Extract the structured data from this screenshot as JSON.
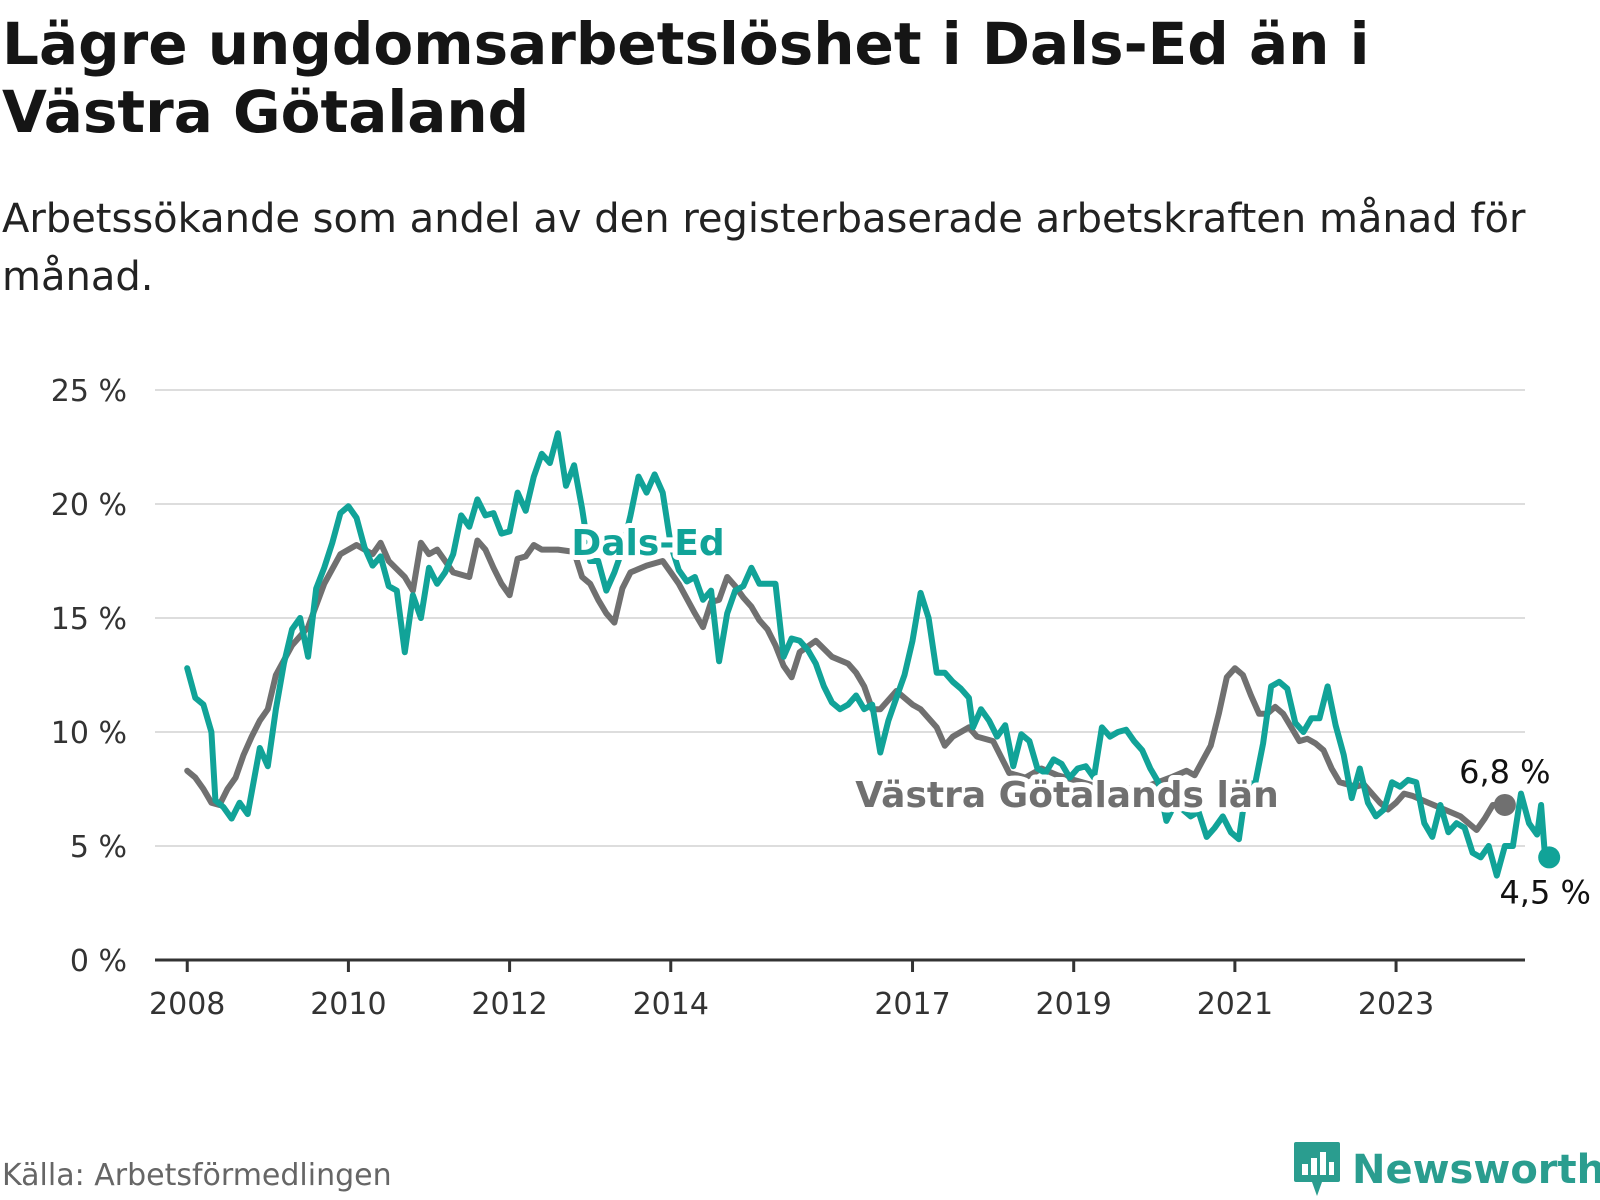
{
  "title": "Lägre ungdomsarbetslöshet i Dals-Ed än i Västra Götaland",
  "subtitle": "Arbetssökande som andel av den registerbaserade arbetskraften månad för månad.",
  "source": "Källa: Arbetsförmedlingen",
  "brand": "Newsworthy",
  "colors": {
    "dals_ed": "#11a398",
    "vastra_gotaland": "#707070",
    "grid": "#dddddd",
    "axis": "#333333",
    "brand": "#2a9d8f"
  },
  "chart_data": {
    "type": "line",
    "title": "Lägre ungdomsarbetslöshet i Dals-Ed än i Västra Götaland",
    "xlabel": "",
    "ylabel": "",
    "xlim": [
      2007.6,
      2024.6
    ],
    "ylim": [
      0,
      25
    ],
    "y_ticks": [
      0,
      5,
      10,
      15,
      20,
      25
    ],
    "y_tick_labels": [
      "0 %",
      "5 %",
      "10 %",
      "15 %",
      "20 %",
      "25 %"
    ],
    "x_ticks": [
      2008,
      2010,
      2012,
      2014,
      2017,
      2019,
      2021,
      2023
    ],
    "x_tick_labels": [
      "2008",
      "2010",
      "2012",
      "2014",
      "2017",
      "2019",
      "2021",
      "2023"
    ],
    "grid": true,
    "series": [
      {
        "name": "Västra Götalands län",
        "label": "Västra Götalands län",
        "end_label": "6,8 %",
        "end_value": 6.8,
        "color": "#707070",
        "points": [
          [
            2008.0,
            8.3
          ],
          [
            2008.1,
            8.0
          ],
          [
            2008.2,
            7.5
          ],
          [
            2008.3,
            6.9
          ],
          [
            2008.4,
            6.8
          ],
          [
            2008.5,
            7.5
          ],
          [
            2008.6,
            8.0
          ],
          [
            2008.7,
            9.0
          ],
          [
            2008.8,
            9.8
          ],
          [
            2008.9,
            10.5
          ],
          [
            2009.0,
            11.0
          ],
          [
            2009.1,
            12.5
          ],
          [
            2009.3,
            13.8
          ],
          [
            2009.5,
            14.6
          ],
          [
            2009.7,
            16.5
          ],
          [
            2009.9,
            17.8
          ],
          [
            2010.1,
            18.2
          ],
          [
            2010.3,
            17.8
          ],
          [
            2010.4,
            18.3
          ],
          [
            2010.5,
            17.5
          ],
          [
            2010.7,
            16.8
          ],
          [
            2010.8,
            16.2
          ],
          [
            2010.9,
            18.3
          ],
          [
            2011.0,
            17.8
          ],
          [
            2011.1,
            18.0
          ],
          [
            2011.3,
            17.0
          ],
          [
            2011.5,
            16.8
          ],
          [
            2011.6,
            18.4
          ],
          [
            2011.7,
            18.0
          ],
          [
            2011.8,
            17.2
          ],
          [
            2011.9,
            16.5
          ],
          [
            2012.0,
            16.0
          ],
          [
            2012.1,
            17.6
          ],
          [
            2012.2,
            17.7
          ],
          [
            2012.3,
            18.2
          ],
          [
            2012.4,
            18.0
          ],
          [
            2012.6,
            18.0
          ],
          [
            2012.8,
            17.9
          ],
          [
            2012.9,
            16.8
          ],
          [
            2013.0,
            16.5
          ],
          [
            2013.1,
            15.8
          ],
          [
            2013.2,
            15.2
          ],
          [
            2013.3,
            14.8
          ],
          [
            2013.4,
            16.3
          ],
          [
            2013.5,
            17.0
          ],
          [
            2013.7,
            17.3
          ],
          [
            2013.9,
            17.5
          ],
          [
            2014.0,
            17.0
          ],
          [
            2014.1,
            16.5
          ],
          [
            2014.3,
            15.2
          ],
          [
            2014.4,
            14.6
          ],
          [
            2014.5,
            15.7
          ],
          [
            2014.6,
            15.8
          ],
          [
            2014.7,
            16.8
          ],
          [
            2014.8,
            16.4
          ],
          [
            2014.9,
            15.9
          ],
          [
            2015.0,
            15.5
          ],
          [
            2015.1,
            14.9
          ],
          [
            2015.2,
            14.5
          ],
          [
            2015.3,
            13.8
          ],
          [
            2015.4,
            12.9
          ],
          [
            2015.5,
            12.4
          ],
          [
            2015.6,
            13.5
          ],
          [
            2015.8,
            14.0
          ],
          [
            2016.0,
            13.3
          ],
          [
            2016.2,
            13.0
          ],
          [
            2016.3,
            12.6
          ],
          [
            2016.4,
            12.0
          ],
          [
            2016.5,
            11.0
          ],
          [
            2016.6,
            11.0
          ],
          [
            2016.8,
            11.8
          ],
          [
            2017.0,
            11.2
          ],
          [
            2017.1,
            11.0
          ],
          [
            2017.3,
            10.2
          ],
          [
            2017.4,
            9.4
          ],
          [
            2017.5,
            9.8
          ],
          [
            2017.7,
            10.2
          ],
          [
            2017.8,
            9.8
          ],
          [
            2018.0,
            9.6
          ],
          [
            2018.2,
            8.2
          ],
          [
            2018.4,
            8.0
          ],
          [
            2018.6,
            8.4
          ],
          [
            2018.8,
            8.1
          ],
          [
            2019.0,
            7.9
          ],
          [
            2019.3,
            7.6
          ],
          [
            2019.6,
            7.5
          ],
          [
            2019.9,
            7.6
          ],
          [
            2020.2,
            8.0
          ],
          [
            2020.4,
            8.3
          ],
          [
            2020.5,
            8.1
          ],
          [
            2020.7,
            9.4
          ],
          [
            2020.8,
            10.8
          ],
          [
            2020.9,
            12.4
          ],
          [
            2021.0,
            12.8
          ],
          [
            2021.1,
            12.5
          ],
          [
            2021.2,
            11.6
          ],
          [
            2021.3,
            10.8
          ],
          [
            2021.4,
            10.8
          ],
          [
            2021.5,
            11.1
          ],
          [
            2021.6,
            10.8
          ],
          [
            2021.7,
            10.2
          ],
          [
            2021.8,
            9.6
          ],
          [
            2021.9,
            9.7
          ],
          [
            2022.0,
            9.5
          ],
          [
            2022.1,
            9.2
          ],
          [
            2022.2,
            8.4
          ],
          [
            2022.3,
            7.8
          ],
          [
            2022.5,
            7.6
          ],
          [
            2022.6,
            7.7
          ],
          [
            2022.7,
            7.3
          ],
          [
            2022.8,
            6.9
          ],
          [
            2022.9,
            6.6
          ],
          [
            2023.0,
            6.9
          ],
          [
            2023.1,
            7.3
          ],
          [
            2023.2,
            7.2
          ],
          [
            2023.4,
            6.9
          ],
          [
            2023.6,
            6.6
          ],
          [
            2023.8,
            6.3
          ],
          [
            2024.0,
            5.7
          ],
          [
            2024.1,
            6.2
          ],
          [
            2024.2,
            6.8
          ],
          [
            2024.35,
            6.8
          ]
        ]
      },
      {
        "name": "Dals-Ed",
        "label": "Dals-Ed",
        "end_label": "4,5 %",
        "end_value": 4.5,
        "color": "#11a398",
        "points": [
          [
            2008.0,
            12.8
          ],
          [
            2008.1,
            11.5
          ],
          [
            2008.2,
            11.2
          ],
          [
            2008.3,
            10.0
          ],
          [
            2008.35,
            7.0
          ],
          [
            2008.45,
            6.7
          ],
          [
            2008.55,
            6.2
          ],
          [
            2008.65,
            6.9
          ],
          [
            2008.75,
            6.4
          ],
          [
            2008.9,
            9.3
          ],
          [
            2009.0,
            8.5
          ],
          [
            2009.1,
            11.0
          ],
          [
            2009.2,
            13.0
          ],
          [
            2009.3,
            14.5
          ],
          [
            2009.4,
            15.0
          ],
          [
            2009.5,
            13.3
          ],
          [
            2009.6,
            16.3
          ],
          [
            2009.7,
            17.2
          ],
          [
            2009.8,
            18.3
          ],
          [
            2009.9,
            19.6
          ],
          [
            2010.0,
            19.9
          ],
          [
            2010.1,
            19.4
          ],
          [
            2010.2,
            18.1
          ],
          [
            2010.3,
            17.3
          ],
          [
            2010.4,
            17.7
          ],
          [
            2010.5,
            16.4
          ],
          [
            2010.6,
            16.2
          ],
          [
            2010.7,
            13.5
          ],
          [
            2010.8,
            16.0
          ],
          [
            2010.9,
            15.0
          ],
          [
            2011.0,
            17.2
          ],
          [
            2011.1,
            16.5
          ],
          [
            2011.2,
            17.0
          ],
          [
            2011.3,
            17.8
          ],
          [
            2011.4,
            19.5
          ],
          [
            2011.5,
            19.0
          ],
          [
            2011.6,
            20.2
          ],
          [
            2011.7,
            19.5
          ],
          [
            2011.8,
            19.6
          ],
          [
            2011.9,
            18.7
          ],
          [
            2012.0,
            18.8
          ],
          [
            2012.1,
            20.5
          ],
          [
            2012.2,
            19.7
          ],
          [
            2012.3,
            21.2
          ],
          [
            2012.4,
            22.2
          ],
          [
            2012.5,
            21.8
          ],
          [
            2012.6,
            23.1
          ],
          [
            2012.7,
            20.8
          ],
          [
            2012.8,
            21.7
          ],
          [
            2012.9,
            19.8
          ],
          [
            2013.0,
            17.5
          ],
          [
            2013.1,
            17.5
          ],
          [
            2013.2,
            16.2
          ],
          [
            2013.3,
            17.0
          ],
          [
            2013.4,
            18.0
          ],
          [
            2013.5,
            19.5
          ],
          [
            2013.6,
            21.2
          ],
          [
            2013.7,
            20.5
          ],
          [
            2013.8,
            21.3
          ],
          [
            2013.9,
            20.5
          ],
          [
            2014.0,
            18.2
          ],
          [
            2014.1,
            17.1
          ],
          [
            2014.2,
            16.6
          ],
          [
            2014.3,
            16.8
          ],
          [
            2014.4,
            15.8
          ],
          [
            2014.5,
            16.2
          ],
          [
            2014.6,
            13.1
          ],
          [
            2014.7,
            15.2
          ],
          [
            2014.8,
            16.2
          ],
          [
            2014.9,
            16.4
          ],
          [
            2015.0,
            17.2
          ],
          [
            2015.1,
            16.5
          ],
          [
            2015.2,
            16.5
          ],
          [
            2015.3,
            16.5
          ],
          [
            2015.4,
            13.3
          ],
          [
            2015.5,
            14.1
          ],
          [
            2015.6,
            14.0
          ],
          [
            2015.7,
            13.6
          ],
          [
            2015.8,
            13.0
          ],
          [
            2015.9,
            12.0
          ],
          [
            2016.0,
            11.3
          ],
          [
            2016.1,
            11.0
          ],
          [
            2016.2,
            11.2
          ],
          [
            2016.3,
            11.6
          ],
          [
            2016.4,
            11.0
          ],
          [
            2016.5,
            11.2
          ],
          [
            2016.6,
            9.1
          ],
          [
            2016.7,
            10.5
          ],
          [
            2016.8,
            11.5
          ],
          [
            2016.9,
            12.5
          ],
          [
            2017.0,
            14.0
          ],
          [
            2017.1,
            16.1
          ],
          [
            2017.2,
            15.0
          ],
          [
            2017.3,
            12.6
          ],
          [
            2017.4,
            12.6
          ],
          [
            2017.5,
            12.2
          ],
          [
            2017.6,
            11.9
          ],
          [
            2017.7,
            11.5
          ],
          [
            2017.75,
            10.2
          ],
          [
            2017.85,
            11.0
          ],
          [
            2017.95,
            10.5
          ],
          [
            2018.05,
            9.8
          ],
          [
            2018.15,
            10.3
          ],
          [
            2018.25,
            8.5
          ],
          [
            2018.35,
            9.9
          ],
          [
            2018.45,
            9.6
          ],
          [
            2018.55,
            8.4
          ],
          [
            2018.65,
            8.2
          ],
          [
            2018.75,
            8.8
          ],
          [
            2018.85,
            8.6
          ],
          [
            2018.95,
            8.0
          ],
          [
            2019.05,
            8.4
          ],
          [
            2019.15,
            8.5
          ],
          [
            2019.25,
            8.0
          ],
          [
            2019.35,
            10.2
          ],
          [
            2019.45,
            9.8
          ],
          [
            2019.55,
            10.0
          ],
          [
            2019.65,
            10.1
          ],
          [
            2019.75,
            9.6
          ],
          [
            2019.85,
            9.2
          ],
          [
            2019.95,
            8.4
          ],
          [
            2020.05,
            7.8
          ],
          [
            2020.15,
            6.1
          ],
          [
            2020.25,
            6.8
          ],
          [
            2020.35,
            6.6
          ],
          [
            2020.45,
            6.3
          ],
          [
            2020.55,
            6.5
          ],
          [
            2020.65,
            5.4
          ],
          [
            2020.75,
            5.8
          ],
          [
            2020.85,
            6.3
          ],
          [
            2020.95,
            5.6
          ],
          [
            2021.05,
            5.3
          ],
          [
            2021.15,
            7.8
          ],
          [
            2021.25,
            7.7
          ],
          [
            2021.35,
            9.5
          ],
          [
            2021.45,
            12.0
          ],
          [
            2021.55,
            12.2
          ],
          [
            2021.65,
            11.9
          ],
          [
            2021.75,
            10.4
          ],
          [
            2021.85,
            10.0
          ],
          [
            2021.95,
            10.6
          ],
          [
            2022.05,
            10.6
          ],
          [
            2022.15,
            12.0
          ],
          [
            2022.25,
            10.3
          ],
          [
            2022.35,
            9.0
          ],
          [
            2022.45,
            7.1
          ],
          [
            2022.55,
            8.4
          ],
          [
            2022.65,
            6.9
          ],
          [
            2022.75,
            6.3
          ],
          [
            2022.85,
            6.6
          ],
          [
            2022.95,
            7.8
          ],
          [
            2023.05,
            7.6
          ],
          [
            2023.15,
            7.9
          ],
          [
            2023.25,
            7.8
          ],
          [
            2023.35,
            6.0
          ],
          [
            2023.45,
            5.4
          ],
          [
            2023.55,
            6.8
          ],
          [
            2023.65,
            5.6
          ],
          [
            2023.75,
            6.0
          ],
          [
            2023.85,
            5.8
          ],
          [
            2023.95,
            4.7
          ],
          [
            2024.05,
            4.5
          ],
          [
            2024.15,
            5.0
          ],
          [
            2024.25,
            3.7
          ],
          [
            2024.35,
            5.0
          ],
          [
            2024.45,
            5.0
          ],
          [
            2024.55,
            7.3
          ],
          [
            2024.65,
            6.0
          ],
          [
            2024.75,
            5.5
          ],
          [
            2024.8,
            6.8
          ],
          [
            2024.85,
            4.5
          ],
          [
            2024.9,
            4.5
          ]
        ]
      }
    ]
  }
}
